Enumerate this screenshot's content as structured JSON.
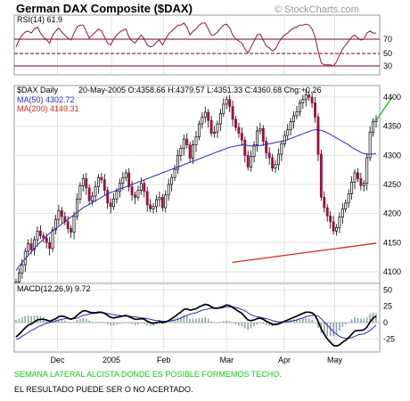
{
  "header": {
    "title": "German DAX Composite ($DAX)",
    "watermark": "© StockCharts.com"
  },
  "rsi_panel": {
    "label": "RSI(14) 61.9",
    "levels": [
      "70",
      "50",
      "30"
    ]
  },
  "price_panel": {
    "symbol_label": "$DAX Daily",
    "quote": "20-May-2005 O:4358.66 H:4379.57 L:4351.33 C:4360.68 Chg:+0.26",
    "ma50_label": "MA(50) 4302.72",
    "ma200_label": "MA(200) 4149.31",
    "y_ticks": [
      "4400",
      "4350",
      "4300",
      "4250",
      "4200",
      "4150",
      "4100"
    ]
  },
  "macd_panel": {
    "label": "MACD(12,26,9) 9.72",
    "y_ticks": [
      "50",
      "25",
      "0",
      "-25"
    ]
  },
  "x_axis": {
    "ticks": [
      "Dec",
      "2005",
      "Feb",
      "Mar",
      "Apr",
      "May"
    ]
  },
  "annotations": {
    "comment_1": "SEMANA LATERAL ALCISTA DONDE ES POSIBLE FORMEMOS TECHO.",
    "comment_2": "EL RESULTADO PUEDE SER O NO ACERTADO."
  },
  "colors": {
    "rsi_line": "#8b1a3a",
    "band_line": "#7a0020",
    "ma50": "#2d2db5",
    "ma200": "#d42a1a",
    "candle_down": "#9b0f45",
    "macd_line": "#000000",
    "signal_line": "#2d2db5",
    "histogram": "#8aa8a8",
    "trend_green": "#22cc22",
    "comment_green": "#11cc11"
  },
  "chart_data": {
    "type": "line",
    "x_ticks": [
      "Dec",
      "2005",
      "Feb",
      "Mar",
      "Apr",
      "May"
    ],
    "price_ylim": [
      4080,
      4420
    ],
    "price_close": [
      4082,
      4098,
      4112,
      4135,
      4148,
      4138,
      4155,
      4170,
      4162,
      4158,
      4150,
      4140,
      4172,
      4190,
      4205,
      4195,
      4186,
      4174,
      4168,
      4195,
      4225,
      4248,
      4260,
      4244,
      4222,
      4230,
      4246,
      4262,
      4258,
      4240,
      4218,
      4212,
      4225,
      4238,
      4252,
      4262,
      4270,
      4246,
      4232,
      4228,
      4240,
      4252,
      4238,
      4215,
      4208,
      4212,
      4224,
      4228,
      4210,
      4232,
      4250,
      4262,
      4276,
      4300,
      4312,
      4328,
      4318,
      4295,
      4318,
      4332,
      4354,
      4366,
      4374,
      4360,
      4338,
      4340,
      4354,
      4372,
      4388,
      4396,
      4384,
      4362,
      4348,
      4338,
      4326,
      4300,
      4280,
      4298,
      4318,
      4342,
      4346,
      4324,
      4304,
      4296,
      4278,
      4284,
      4302,
      4320,
      4334,
      4344,
      4358,
      4368,
      4375,
      4390,
      4396,
      4404,
      4400,
      4390,
      4366,
      4302,
      4228,
      4210,
      4196,
      4186,
      4170,
      4176,
      4194,
      4208,
      4218,
      4234,
      4254,
      4270,
      4260,
      4248,
      4252,
      4296,
      4340,
      4358,
      4361
    ],
    "ma50": [
      4102,
      4109,
      4116,
      4122,
      4128,
      4134,
      4140,
      4146,
      4151,
      4156,
      4161,
      4166,
      4170,
      4174,
      4178,
      4182,
      4186,
      4190,
      4194,
      4198,
      4202,
      4206,
      4210,
      4213,
      4216,
      4219,
      4222,
      4225,
      4228,
      4231,
      4234,
      4236,
      4238,
      4240,
      4242,
      4244,
      4246,
      4248,
      4250,
      4252,
      4254,
      4256,
      4258,
      4260,
      4262,
      4264,
      4266,
      4268,
      4270,
      4272,
      4274,
      4276,
      4278,
      4280,
      4282,
      4284,
      4286,
      4288,
      4290,
      4292,
      4294,
      4296,
      4298,
      4300,
      4302,
      4304,
      4306,
      4308,
      4310,
      4312,
      4314,
      4315,
      4316,
      4317,
      4318,
      4318,
      4317,
      4316,
      4316,
      4316,
      4317,
      4318,
      4319,
      4320,
      4321,
      4322,
      4323,
      4324,
      4325,
      4327,
      4329,
      4331,
      4333,
      4335,
      4337,
      4339,
      4341,
      4343,
      4344,
      4344,
      4343,
      4341,
      4339,
      4336,
      4333,
      4330,
      4327,
      4324,
      4321,
      4318,
      4314,
      4311,
      4308,
      4305,
      4303,
      4302,
      4302,
      4302,
      4303
    ],
    "ma200": [
      4010,
      4012,
      4014,
      4016,
      4018,
      4020,
      4022,
      4024,
      4026,
      4028,
      4030,
      4032,
      4034,
      4036,
      4038,
      4040,
      4042,
      4044,
      4046,
      4048,
      4050,
      4052,
      4054,
      4056,
      4058,
      4060,
      4062,
      4064,
      4066,
      4068,
      4070,
      4072,
      4074,
      4076,
      4078,
      4080,
      4081,
      4082,
      4083,
      4084,
      4085,
      4086,
      4087,
      4088,
      4089,
      4090,
      4091,
      4092,
      4093,
      4094,
      4095,
      4096,
      4097,
      4098,
      4099,
      4100,
      4101,
      4102,
      4103,
      4104,
      4105,
      4106,
      4107,
      4108,
      4109,
      4110,
      4111,
      4112,
      4113,
      4114,
      4115,
      4116,
      4117,
      4118,
      4119,
      4120,
      4121,
      4122,
      4123,
      4124,
      4125,
      4126,
      4127,
      4128,
      4129,
      4130,
      4131,
      4132,
      4133,
      4134,
      4135,
      4136,
      4137,
      4138,
      4139,
      4140,
      4141,
      4142,
      4143,
      4143,
      4144,
      4144,
      4145,
      4145,
      4146,
      4146,
      4146,
      4147,
      4147,
      4147,
      4148,
      4148,
      4148,
      4148,
      4149,
      4149,
      4149,
      4149,
      4149
    ],
    "rsi": [
      48,
      55,
      60,
      63,
      64,
      62,
      66,
      68,
      62,
      58,
      55,
      52,
      60,
      64,
      67,
      63,
      60,
      57,
      55,
      62,
      68,
      70,
      70,
      64,
      57,
      60,
      63,
      66,
      64,
      58,
      52,
      50,
      56,
      60,
      63,
      65,
      66,
      58,
      54,
      52,
      56,
      60,
      56,
      50,
      48,
      49,
      53,
      55,
      50,
      56,
      61,
      64,
      67,
      70,
      70,
      72,
      68,
      60,
      64,
      66,
      70,
      72,
      72,
      66,
      60,
      60,
      63,
      67,
      70,
      71,
      67,
      60,
      56,
      54,
      52,
      46,
      42,
      48,
      54,
      60,
      61,
      55,
      49,
      47,
      44,
      46,
      52,
      57,
      60,
      62,
      65,
      67,
      68,
      70,
      70,
      71,
      70,
      66,
      58,
      44,
      32,
      30,
      30,
      30,
      29,
      33,
      40,
      46,
      50,
      54,
      58,
      60,
      57,
      55,
      56,
      62,
      64,
      62,
      62
    ],
    "rsi_ylim": [
      20,
      80
    ],
    "macd": [
      -22,
      -18,
      -13,
      -8,
      -4,
      -2,
      1,
      4,
      5,
      5,
      4,
      2,
      4,
      6,
      9,
      10,
      9,
      7,
      5,
      7,
      11,
      15,
      18,
      18,
      16,
      15,
      15,
      16,
      16,
      14,
      11,
      8,
      7,
      8,
      9,
      10,
      11,
      9,
      7,
      5,
      5,
      6,
      5,
      2,
      0,
      -1,
      0,
      1,
      0,
      1,
      3,
      6,
      9,
      13,
      16,
      20,
      21,
      19,
      20,
      21,
      24,
      26,
      28,
      27,
      24,
      22,
      22,
      23,
      25,
      27,
      26,
      23,
      20,
      17,
      14,
      9,
      4,
      3,
      4,
      6,
      7,
      5,
      2,
      0,
      -3,
      -3,
      -2,
      0,
      2,
      4,
      6,
      8,
      10,
      12,
      14,
      16,
      16,
      15,
      11,
      2,
      -10,
      -18,
      -25,
      -30,
      -35,
      -36,
      -34,
      -30,
      -27,
      -23,
      -18,
      -13,
      -12,
      -12,
      -11,
      -7,
      1,
      7,
      10
    ],
    "signal": [
      -26,
      -24,
      -21,
      -18,
      -15,
      -12,
      -10,
      -7,
      -5,
      -3,
      -1,
      0,
      1,
      2,
      4,
      5,
      6,
      6,
      6,
      6,
      7,
      9,
      11,
      12,
      13,
      14,
      14,
      15,
      15,
      15,
      14,
      13,
      12,
      11,
      11,
      10,
      10,
      10,
      9,
      9,
      8,
      7,
      7,
      6,
      5,
      4,
      3,
      3,
      2,
      2,
      2,
      3,
      4,
      5,
      7,
      9,
      11,
      13,
      14,
      15,
      17,
      19,
      20,
      21,
      22,
      22,
      22,
      22,
      23,
      24,
      24,
      24,
      23,
      22,
      20,
      18,
      15,
      12,
      10,
      9,
      8,
      7,
      6,
      5,
      3,
      2,
      1,
      1,
      1,
      1,
      2,
      3,
      4,
      6,
      7,
      9,
      10,
      11,
      11,
      10,
      6,
      1,
      -4,
      -9,
      -14,
      -18,
      -21,
      -23,
      -24,
      -24,
      -23,
      -21,
      -19,
      -18,
      -17,
      -15,
      -12,
      -8,
      -4
    ],
    "macd_ylim": [
      -45,
      60
    ],
    "trendline_ma200": {
      "from": [
        0.0,
        4100
      ],
      "to": [
        1.0,
        4150
      ]
    },
    "breakout_line": {
      "from": [
        4360,
        4360
      ],
      "to": [
        4385,
        4400
      ]
    }
  }
}
